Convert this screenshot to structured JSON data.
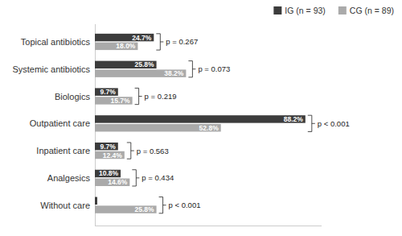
{
  "chart_data": {
    "type": "bar",
    "orientation": "horizontal",
    "categories": [
      "Topical antibiotics",
      "Systemic antibiotics",
      "Biologics",
      "Outpatient care",
      "Inpatient care",
      "Analgesics",
      "Without care"
    ],
    "series": [
      {
        "name": "IG (n = 93)",
        "color": "#3c3c3c",
        "values": [
          24.7,
          25.8,
          9.7,
          88.2,
          9.7,
          10.8,
          1.0
        ],
        "value_labels": [
          "24.7%",
          "25.8%",
          "9.7%",
          "88.2%",
          "9.7%",
          "10.8%",
          null
        ]
      },
      {
        "name": "CG (n = 89)",
        "color": "#aaaaaa",
        "values": [
          18.0,
          38.2,
          15.7,
          52.8,
          12.4,
          14.6,
          25.8
        ],
        "value_labels": [
          "18.0%",
          "38.2%",
          "15.7%",
          "52.8%",
          "12.4%",
          "14.6%",
          "25.8%"
        ]
      }
    ],
    "annotations": [
      "p = 0.267",
      "p = 0.073",
      "p = 0.219",
      "p < 0.001",
      "p = 0.563",
      "p = 0.434",
      "p < 0.001"
    ],
    "xlim": [
      0,
      95
    ],
    "tick_labels": "y",
    "data_labels": true,
    "legend": "upper right",
    "grid": false
  }
}
